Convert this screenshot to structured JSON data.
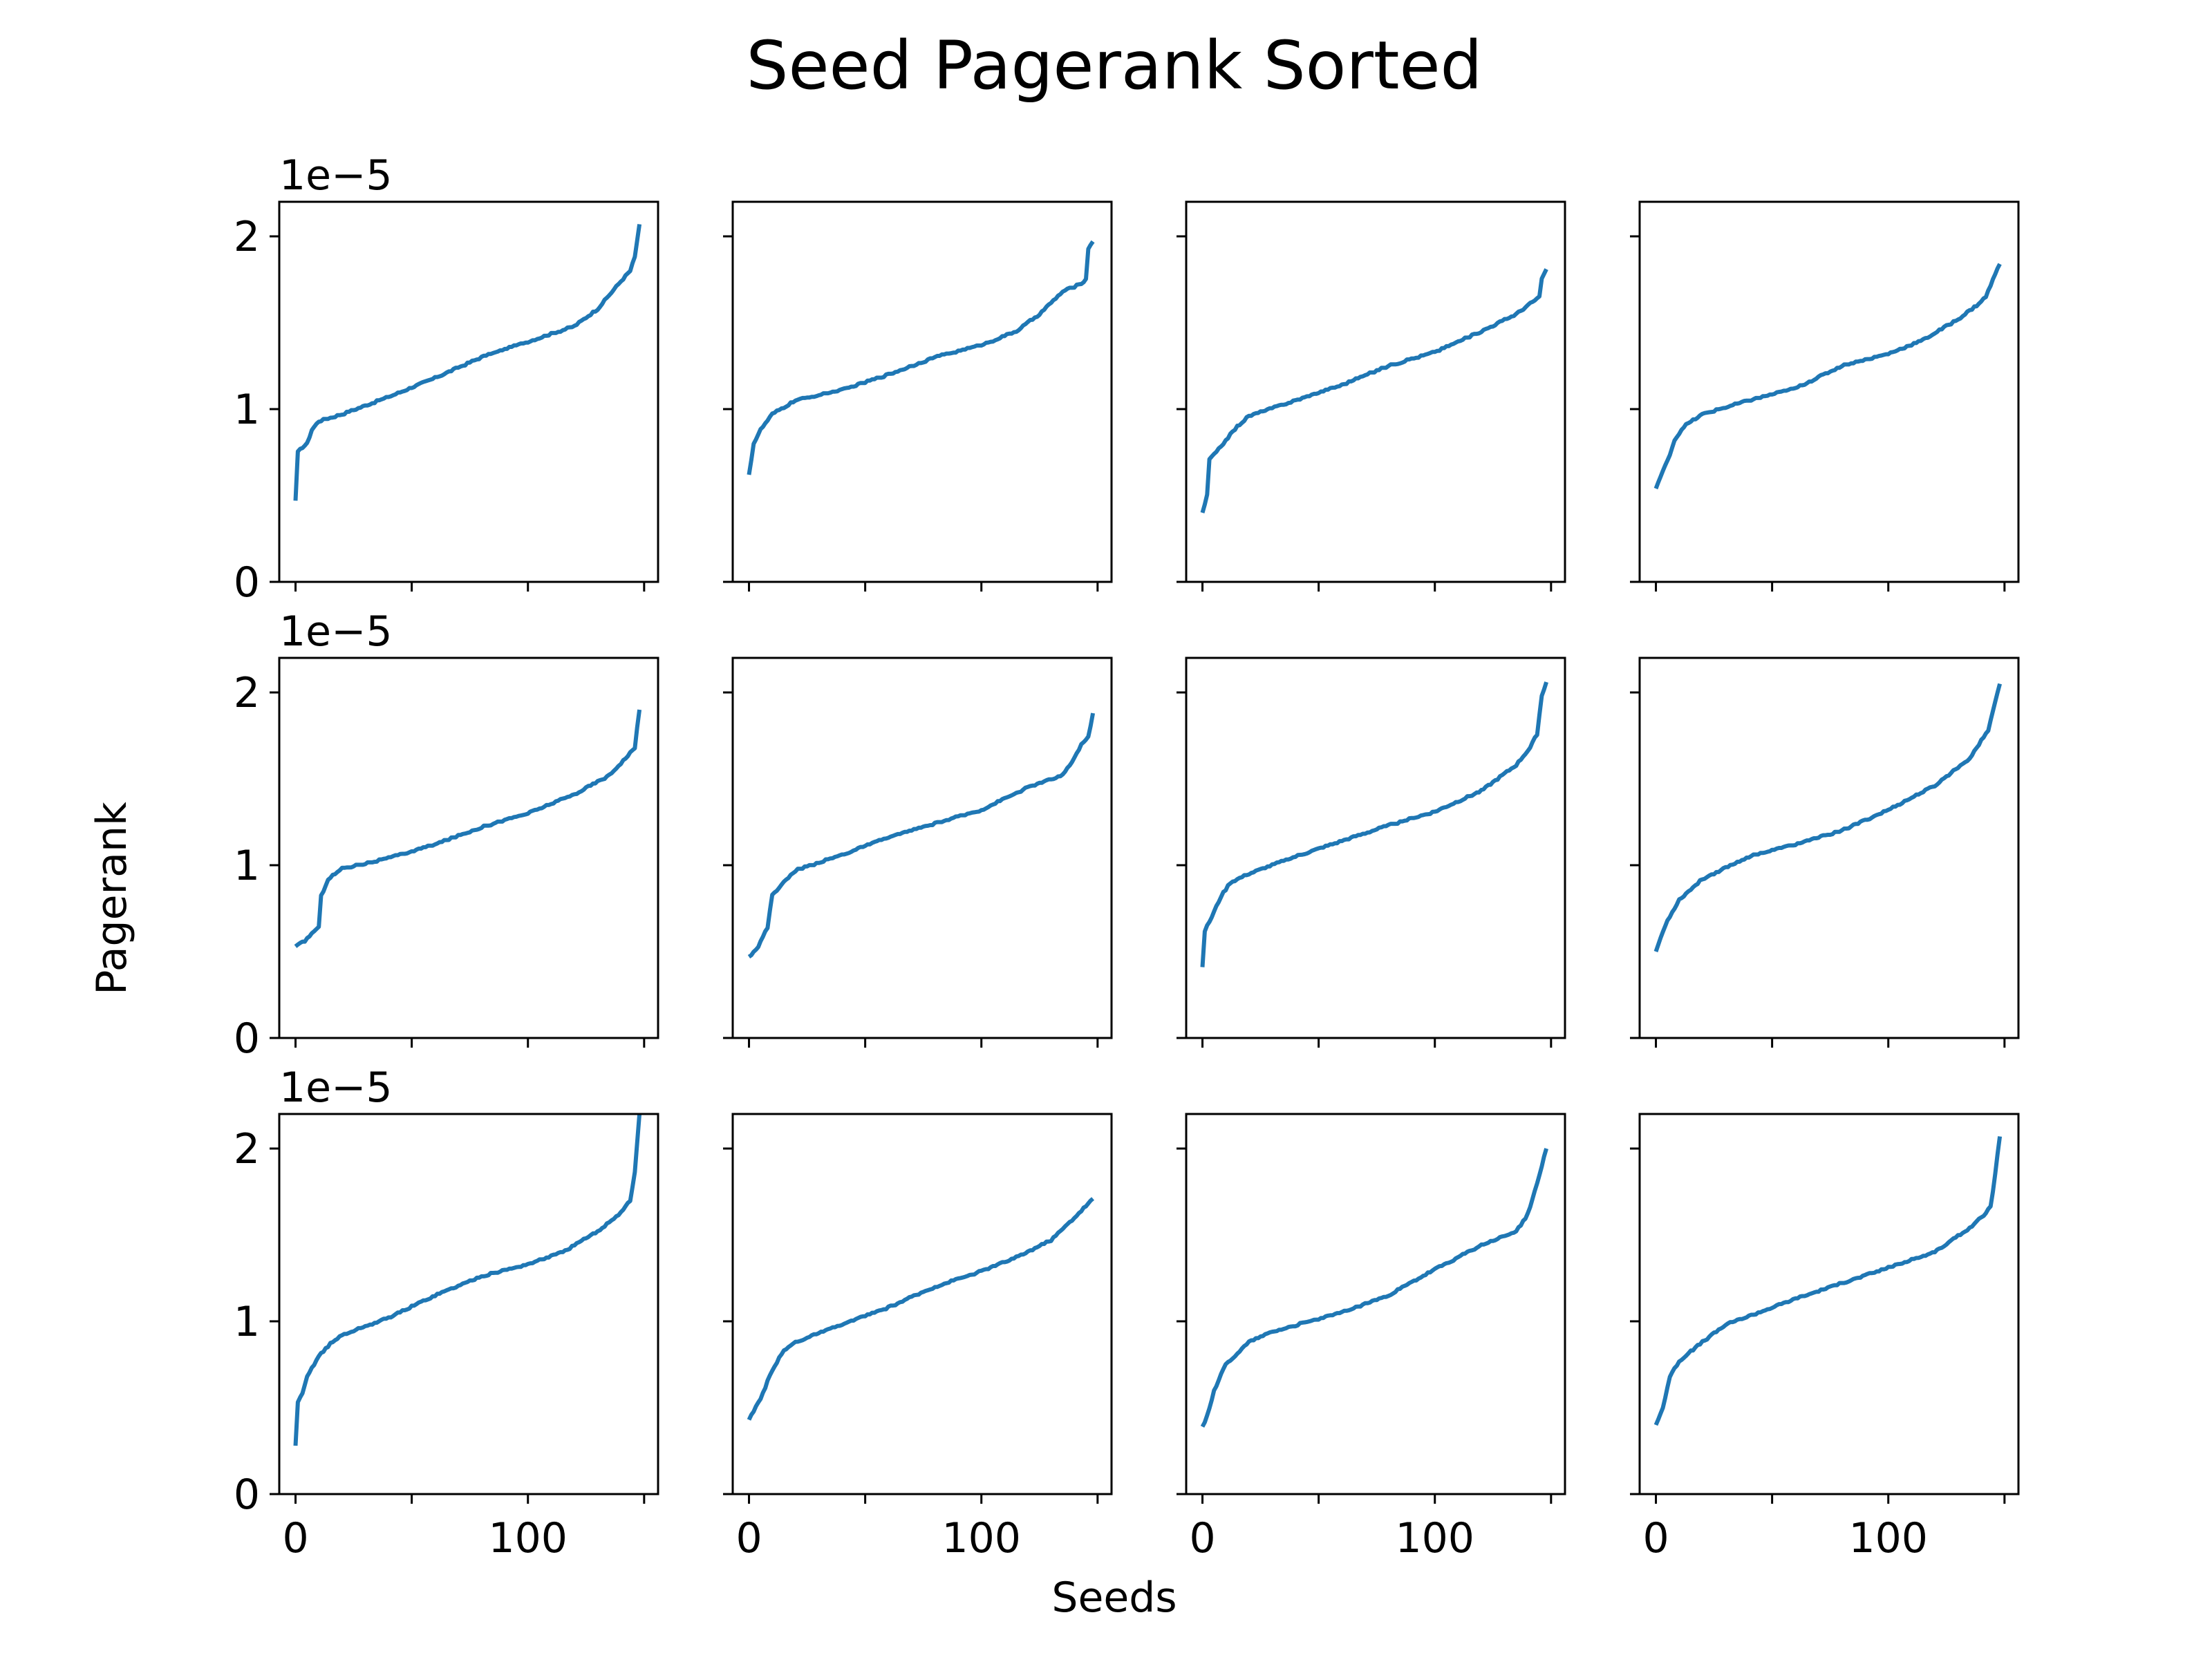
{
  "chart_data": {
    "type": "line",
    "title": "Seed Pagerank Sorted",
    "xlabel": "Seeds",
    "ylabel": "Pagerank",
    "y_offset_label": "1e−5",
    "y_scale_exponent": -5,
    "layout": {
      "rows": 3,
      "cols": 4,
      "sharex": true,
      "sharey": true
    },
    "xlim": [
      -7,
      156
    ],
    "ylim": [
      0,
      2.2
    ],
    "x_ticks": [
      0,
      50,
      100,
      150
    ],
    "x_tick_labels": [
      "0",
      "",
      "100",
      ""
    ],
    "y_ticks": [
      0,
      1,
      2
    ],
    "y_tick_labels": [
      "0",
      "1",
      "2"
    ],
    "grid": false,
    "line_color": "#1f77b4",
    "n_points": 149,
    "subplots": [
      {
        "anchors": [
          [
            0,
            0.47
          ],
          [
            1,
            0.75
          ],
          [
            3,
            0.78
          ],
          [
            5,
            0.8
          ],
          [
            7,
            0.88
          ],
          [
            10,
            0.93
          ],
          [
            20,
            0.97
          ],
          [
            40,
            1.07
          ],
          [
            60,
            1.18
          ],
          [
            80,
            1.3
          ],
          [
            100,
            1.39
          ],
          [
            120,
            1.48
          ],
          [
            130,
            1.58
          ],
          [
            140,
            1.74
          ],
          [
            144,
            1.8
          ],
          [
            146,
            1.88
          ],
          [
            148,
            2.07
          ]
        ]
      },
      {
        "anchors": [
          [
            0,
            0.62
          ],
          [
            2,
            0.8
          ],
          [
            5,
            0.88
          ],
          [
            10,
            0.97
          ],
          [
            20,
            1.05
          ],
          [
            40,
            1.11
          ],
          [
            60,
            1.2
          ],
          [
            80,
            1.3
          ],
          [
            100,
            1.37
          ],
          [
            115,
            1.45
          ],
          [
            125,
            1.55
          ],
          [
            135,
            1.68
          ],
          [
            142,
            1.72
          ],
          [
            145,
            1.75
          ],
          [
            146,
            1.93
          ],
          [
            148,
            1.97
          ]
        ]
      },
      {
        "anchors": [
          [
            0,
            0.4
          ],
          [
            2,
            0.5
          ],
          [
            3,
            0.71
          ],
          [
            6,
            0.75
          ],
          [
            10,
            0.82
          ],
          [
            15,
            0.9
          ],
          [
            20,
            0.96
          ],
          [
            40,
            1.05
          ],
          [
            60,
            1.14
          ],
          [
            80,
            1.25
          ],
          [
            100,
            1.33
          ],
          [
            120,
            1.45
          ],
          [
            135,
            1.55
          ],
          [
            142,
            1.62
          ],
          [
            145,
            1.65
          ],
          [
            146,
            1.75
          ],
          [
            148,
            1.81
          ]
        ]
      },
      {
        "anchors": [
          [
            0,
            0.54
          ],
          [
            2,
            0.61
          ],
          [
            5,
            0.7
          ],
          [
            8,
            0.82
          ],
          [
            12,
            0.9
          ],
          [
            20,
            0.97
          ],
          [
            40,
            1.05
          ],
          [
            60,
            1.12
          ],
          [
            80,
            1.25
          ],
          [
            100,
            1.32
          ],
          [
            115,
            1.4
          ],
          [
            130,
            1.52
          ],
          [
            138,
            1.6
          ],
          [
            142,
            1.65
          ],
          [
            145,
            1.75
          ],
          [
            148,
            1.84
          ]
        ]
      },
      {
        "anchors": [
          [
            0,
            0.53
          ],
          [
            4,
            0.56
          ],
          [
            8,
            0.62
          ],
          [
            10,
            0.64
          ],
          [
            11,
            0.82
          ],
          [
            14,
            0.92
          ],
          [
            20,
            0.98
          ],
          [
            40,
            1.04
          ],
          [
            60,
            1.12
          ],
          [
            80,
            1.22
          ],
          [
            100,
            1.3
          ],
          [
            120,
            1.41
          ],
          [
            135,
            1.52
          ],
          [
            142,
            1.62
          ],
          [
            146,
            1.68
          ],
          [
            148,
            1.9
          ]
        ]
      },
      {
        "anchors": [
          [
            0,
            0.47
          ],
          [
            4,
            0.53
          ],
          [
            8,
            0.64
          ],
          [
            10,
            0.83
          ],
          [
            15,
            0.9
          ],
          [
            20,
            0.97
          ],
          [
            40,
            1.06
          ],
          [
            60,
            1.16
          ],
          [
            80,
            1.24
          ],
          [
            100,
            1.32
          ],
          [
            120,
            1.45
          ],
          [
            135,
            1.52
          ],
          [
            140,
            1.62
          ],
          [
            143,
            1.7
          ],
          [
            146,
            1.74
          ],
          [
            148,
            1.88
          ]
        ]
      },
      {
        "anchors": [
          [
            0,
            0.41
          ],
          [
            1,
            0.62
          ],
          [
            4,
            0.7
          ],
          [
            8,
            0.82
          ],
          [
            12,
            0.9
          ],
          [
            20,
            0.95
          ],
          [
            40,
            1.05
          ],
          [
            60,
            1.14
          ],
          [
            80,
            1.23
          ],
          [
            100,
            1.31
          ],
          [
            120,
            1.43
          ],
          [
            135,
            1.58
          ],
          [
            141,
            1.68
          ],
          [
            144,
            1.76
          ],
          [
            146,
            1.98
          ],
          [
            148,
            2.06
          ]
        ]
      },
      {
        "anchors": [
          [
            0,
            0.5
          ],
          [
            2,
            0.58
          ],
          [
            5,
            0.68
          ],
          [
            10,
            0.8
          ],
          [
            20,
            0.92
          ],
          [
            40,
            1.05
          ],
          [
            60,
            1.12
          ],
          [
            80,
            1.2
          ],
          [
            100,
            1.32
          ],
          [
            120,
            1.46
          ],
          [
            135,
            1.62
          ],
          [
            140,
            1.72
          ],
          [
            143,
            1.78
          ],
          [
            146,
            1.95
          ],
          [
            148,
            2.05
          ]
        ]
      },
      {
        "anchors": [
          [
            0,
            0.28
          ],
          [
            1,
            0.53
          ],
          [
            3,
            0.58
          ],
          [
            5,
            0.68
          ],
          [
            10,
            0.8
          ],
          [
            15,
            0.87
          ],
          [
            20,
            0.92
          ],
          [
            40,
            1.02
          ],
          [
            60,
            1.15
          ],
          [
            80,
            1.26
          ],
          [
            100,
            1.33
          ],
          [
            115,
            1.4
          ],
          [
            130,
            1.52
          ],
          [
            140,
            1.63
          ],
          [
            144,
            1.7
          ],
          [
            146,
            1.86
          ],
          [
            148,
            2.2
          ]
        ]
      },
      {
        "anchors": [
          [
            0,
            0.43
          ],
          [
            5,
            0.55
          ],
          [
            10,
            0.72
          ],
          [
            15,
            0.83
          ],
          [
            20,
            0.88
          ],
          [
            40,
            0.98
          ],
          [
            60,
            1.08
          ],
          [
            80,
            1.2
          ],
          [
            100,
            1.29
          ],
          [
            115,
            1.37
          ],
          [
            130,
            1.47
          ],
          [
            140,
            1.6
          ],
          [
            148,
            1.71
          ]
        ]
      },
      {
        "anchors": [
          [
            0,
            0.39
          ],
          [
            2,
            0.45
          ],
          [
            5,
            0.6
          ],
          [
            10,
            0.75
          ],
          [
            20,
            0.88
          ],
          [
            30,
            0.94
          ],
          [
            60,
            1.05
          ],
          [
            80,
            1.15
          ],
          [
            100,
            1.3
          ],
          [
            120,
            1.44
          ],
          [
            135,
            1.52
          ],
          [
            140,
            1.62
          ],
          [
            144,
            1.8
          ],
          [
            148,
            2.0
          ]
        ]
      },
      {
        "anchors": [
          [
            0,
            0.4
          ],
          [
            3,
            0.5
          ],
          [
            6,
            0.68
          ],
          [
            10,
            0.77
          ],
          [
            20,
            0.88
          ],
          [
            30,
            0.98
          ],
          [
            60,
            1.13
          ],
          [
            80,
            1.22
          ],
          [
            100,
            1.31
          ],
          [
            120,
            1.4
          ],
          [
            135,
            1.54
          ],
          [
            140,
            1.6
          ],
          [
            144,
            1.66
          ],
          [
            146,
            1.85
          ],
          [
            148,
            2.07
          ]
        ]
      }
    ]
  }
}
